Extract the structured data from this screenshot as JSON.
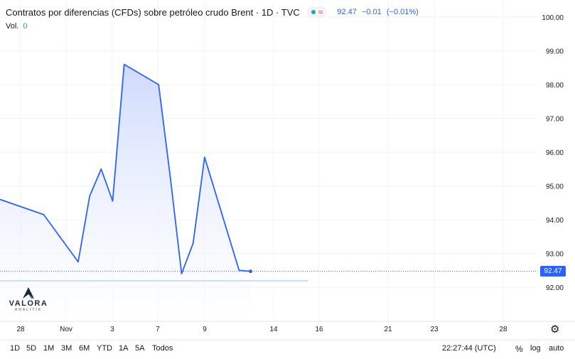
{
  "header": {
    "symbol_title": "Contratos por diferencias (CFDs) sobre petróleo crudo Brent · 1D · TVC",
    "approx_glyph": "≈",
    "last_price": "92.47",
    "change": "−0.01",
    "change_pct": "(−0.01%)",
    "volume_label": "Vol.",
    "volume_value": "0"
  },
  "last_price_label": "92.47",
  "range_buttons": [
    "1D",
    "5D",
    "1M",
    "3M",
    "6M",
    "YTD",
    "1A",
    "5A",
    "Todos"
  ],
  "status": {
    "clock": "22:27:44 (UTC)",
    "percent": "%",
    "log": "log",
    "auto": "auto"
  },
  "logo": {
    "name": "VALORA",
    "tagline": "ANALITIK"
  },
  "colors": {
    "line": "#2962ff",
    "area_top": "#c9d6fb",
    "area_bottom": "#ffffff",
    "label_bg": "#2962ff",
    "text": "#131722",
    "grid": "#f0f3fa"
  },
  "icons": {
    "settings": "gear-icon",
    "status": "green-dot-icon"
  },
  "chart_data": {
    "type": "area",
    "x_tick_labels": [
      "28",
      "Nov",
      "3",
      "7",
      "9",
      "14",
      "16",
      "21",
      "23",
      "28"
    ],
    "y_tick_labels": [
      "92.00",
      "93.00",
      "94.00",
      "95.00",
      "96.00",
      "97.00",
      "98.00",
      "99.00",
      "100.00"
    ],
    "ylim": [
      91.2,
      100.3
    ],
    "series": [
      {
        "x": [
          "Oct 27",
          "Oct 28",
          "Oct 31",
          "Nov 1",
          "Nov 2",
          "Nov 3",
          "Nov 4",
          "Nov 7",
          "Nov 8",
          "Nov 9",
          "Nov 10",
          "Nov 11",
          "Nov 14",
          "Nov 15"
        ],
        "values": [
          94.6,
          94.15,
          92.75,
          94.7,
          95.5,
          94.55,
          98.6,
          98.0,
          95.3,
          92.4,
          93.3,
          95.85,
          92.5,
          92.47
        ]
      }
    ],
    "last_value": 92.47,
    "grid": true,
    "legend": "top-left"
  }
}
